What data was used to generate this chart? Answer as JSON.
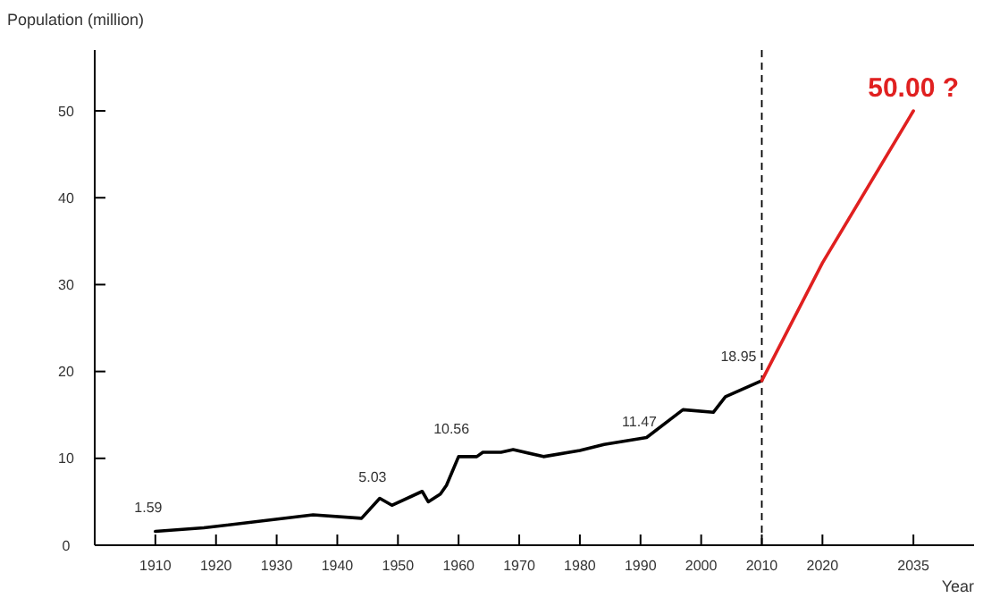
{
  "chart_data": {
    "type": "line",
    "ylabel": "Population (million)",
    "xlabel": "Year",
    "xlim": [
      1900,
      2045
    ],
    "xticks": [
      1910,
      1920,
      1930,
      1940,
      1950,
      1960,
      1970,
      1980,
      1990,
      2000,
      2010,
      2020,
      2035
    ],
    "ylim": [
      0,
      57
    ],
    "yticks": [
      0,
      10,
      20,
      30,
      40,
      50
    ],
    "grid": false,
    "marker": "none",
    "line_style": "solid",
    "series": [
      {
        "color": "#000000",
        "x": [
          1910,
          1918,
          1936,
          1944,
          1947,
          1949,
          1954,
          1955,
          1957,
          1958,
          1960,
          1963,
          1964,
          1967,
          1969,
          1974,
          1980,
          1984,
          1991,
          1997,
          2002,
          2004,
          2010
        ],
        "values": [
          1.59,
          2.0,
          3.5,
          3.1,
          5.4,
          4.6,
          6.2,
          5.0,
          5.9,
          6.9,
          10.2,
          10.2,
          10.7,
          10.7,
          11.0,
          10.2,
          10.9,
          11.6,
          12.4,
          15.6,
          15.3,
          17.1,
          18.95
        ]
      },
      {
        "color": "#e02020",
        "x": [
          2010,
          2020,
          2035
        ],
        "values": [
          18.95,
          32.5,
          50.0
        ]
      }
    ],
    "ref_lines": [
      {
        "axis": "x",
        "value": 2010,
        "line_style": "dashed",
        "color": "#000000"
      }
    ],
    "annotations": [
      {
        "text": "1.59",
        "x": 1910,
        "y": 1.59
      },
      {
        "text": "5.03",
        "x": 1947,
        "y": 5.03
      },
      {
        "text": "10.56",
        "x": 1960,
        "y": 10.56
      },
      {
        "text": "11.47",
        "x": 1991,
        "y": 11.47
      },
      {
        "text": "18.95",
        "x": 2010,
        "y": 18.95
      },
      {
        "text": "50.00 ?",
        "x": 2035,
        "y": 50.0
      }
    ]
  }
}
